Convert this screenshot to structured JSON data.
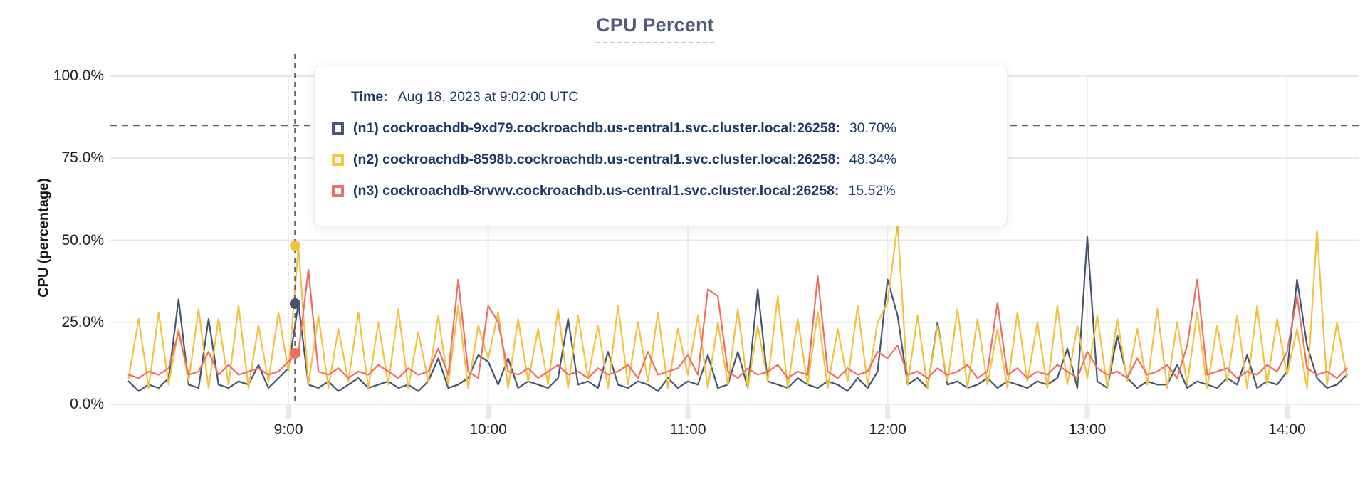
{
  "chart": {
    "title": "CPU Percent",
    "ylabel": "CPU (percentage)"
  },
  "tooltip": {
    "time_label": "Time:",
    "time_value": "Aug 18, 2023 at 9:02:00 UTC",
    "series": [
      {
        "id": "n1",
        "label": "(n1) cockroachdb-9xd79.cockroachdb.us-central1.svc.cluster.local:26258:",
        "value": "30.70%",
        "swatch_color": "#475872"
      },
      {
        "id": "n2",
        "label": "(n2) cockroachdb-8598b.cockroachdb.us-central1.svc.cluster.local:26258:",
        "value": "48.34%",
        "swatch_color": "#f5c843"
      },
      {
        "id": "n3",
        "label": "(n3) cockroachdb-8rvwv.cockroachdb.us-central1.svc.cluster.local:26258:",
        "value": "15.52%",
        "swatch_color": "#ef706b"
      }
    ]
  },
  "chart_data": {
    "type": "line",
    "title": "CPU Percent",
    "xlabel": "",
    "ylabel": "CPU (percentage)",
    "ylim": [
      0,
      100
    ],
    "grid": true,
    "legend_position": "tooltip-overlay",
    "y_ticks": [
      {
        "value": 0,
        "label": "0.0%"
      },
      {
        "value": 25,
        "label": "25.0%"
      },
      {
        "value": 50,
        "label": "50.0%"
      },
      {
        "value": 75,
        "label": "75.0%"
      },
      {
        "value": 100,
        "label": "100.0%"
      }
    ],
    "x_ticks": [
      {
        "minutes": 540,
        "label": "9:00"
      },
      {
        "minutes": 600,
        "label": "10:00"
      },
      {
        "minutes": 660,
        "label": "11:00"
      },
      {
        "minutes": 720,
        "label": "12:00"
      },
      {
        "minutes": 780,
        "label": "13:00"
      },
      {
        "minutes": 840,
        "label": "14:00"
      }
    ],
    "x_range_minutes": [
      486.5,
      861.5
    ],
    "x_start_minutes": 492,
    "x_step_minutes": 3,
    "threshold_line": {
      "value": 85,
      "style": "dashed",
      "color": "#4f6076"
    },
    "hover": {
      "time": "9:02:00",
      "minutes": 542,
      "points": [
        {
          "series": "n1",
          "value": 30.7
        },
        {
          "series": "n2",
          "value": 48.34
        },
        {
          "series": "n3",
          "value": 15.52
        }
      ]
    },
    "colors": {
      "grid": "#e8e8e8",
      "v_grid": "#ededed",
      "axis_text": "#1b1e24",
      "crosshair": "#5c6a7d",
      "title": "#4e5d78"
    },
    "series": [
      {
        "name": "n1",
        "host": "cockroachdb-9xd79.cockroachdb.us-central1.svc.cluster.local:26258",
        "color": "#44536f",
        "values": [
          7,
          4,
          6,
          5,
          8,
          32,
          6,
          5,
          26,
          6,
          5,
          7,
          6,
          12,
          5,
          8,
          11,
          30.7,
          6,
          5,
          7,
          4,
          6,
          8,
          5,
          6,
          7,
          5,
          6,
          4,
          7,
          14,
          5,
          6,
          8,
          15,
          13,
          6,
          14,
          5,
          7,
          6,
          5,
          8,
          26,
          6,
          7,
          5,
          16,
          6,
          5,
          7,
          6,
          4,
          8,
          5,
          7,
          6,
          15,
          5,
          6,
          16,
          5,
          35,
          7,
          6,
          5,
          8,
          6,
          5,
          7,
          6,
          4,
          8,
          5,
          10,
          38,
          27,
          6,
          8,
          5,
          25,
          6,
          7,
          5,
          6,
          8,
          5,
          7,
          6,
          5,
          7,
          6,
          8,
          17,
          5,
          51,
          7,
          5,
          21,
          8,
          5,
          7,
          6,
          6,
          12,
          5,
          7,
          6,
          5,
          8,
          6,
          15,
          5,
          7,
          6,
          10,
          38,
          18,
          8,
          5,
          6,
          9
        ]
      },
      {
        "name": "n2",
        "host": "cockroachdb-8598b.cockroachdb.us-central1.svc.cluster.local:26258",
        "color": "#f2c13e",
        "values": [
          8,
          26,
          5,
          28,
          6,
          23,
          7,
          29,
          5,
          26,
          6,
          30,
          5,
          24,
          7,
          28,
          10,
          48.34,
          6,
          27,
          5,
          23,
          7,
          28,
          5,
          25,
          6,
          29,
          5,
          22,
          7,
          27,
          6,
          30,
          5,
          24,
          14,
          28,
          5,
          26,
          7,
          23,
          6,
          29,
          5,
          27,
          8,
          24,
          5,
          30,
          6,
          25,
          7,
          28,
          5,
          23,
          9,
          27,
          5,
          25,
          6,
          29,
          5,
          24,
          7,
          33,
          5,
          26,
          6,
          28,
          5,
          23,
          7,
          30,
          6,
          25,
          31,
          55,
          6,
          27,
          5,
          24,
          7,
          29,
          5,
          26,
          6,
          23,
          5,
          28,
          7,
          25,
          5,
          30,
          6,
          24,
          8,
          27,
          5,
          26,
          7,
          23,
          6,
          29,
          5,
          25,
          6,
          28,
          5,
          24,
          7,
          27,
          5,
          30,
          6,
          26,
          9,
          23,
          5,
          53,
          6,
          25,
          8
        ]
      },
      {
        "name": "n3",
        "host": "cockroachdb-8rvwv.cockroachdb.us-central1.svc.cluster.local:26258",
        "color": "#ed6d60",
        "values": [
          9,
          8,
          10,
          9,
          11,
          22,
          9,
          10,
          16,
          9,
          12,
          9,
          10,
          11,
          9,
          10,
          13,
          15.52,
          41,
          10,
          9,
          11,
          8,
          10,
          9,
          12,
          10,
          8,
          11,
          9,
          10,
          17,
          9,
          38,
          10,
          8,
          30,
          25,
          10,
          9,
          11,
          8,
          10,
          12,
          9,
          10,
          8,
          11,
          9,
          10,
          12,
          8,
          16,
          9,
          10,
          11,
          15,
          9,
          35,
          33,
          10,
          8,
          11,
          9,
          10,
          12,
          8,
          10,
          9,
          39,
          10,
          8,
          11,
          9,
          10,
          16,
          14,
          18,
          9,
          10,
          8,
          11,
          9,
          10,
          12,
          8,
          10,
          31,
          9,
          11,
          8,
          10,
          9,
          12,
          10,
          8,
          16,
          11,
          9,
          10,
          8,
          14,
          9,
          10,
          12,
          8,
          18,
          38,
          9,
          10,
          11,
          8,
          10,
          9,
          12,
          10,
          16,
          33,
          11,
          9,
          10,
          8,
          11
        ]
      }
    ]
  }
}
